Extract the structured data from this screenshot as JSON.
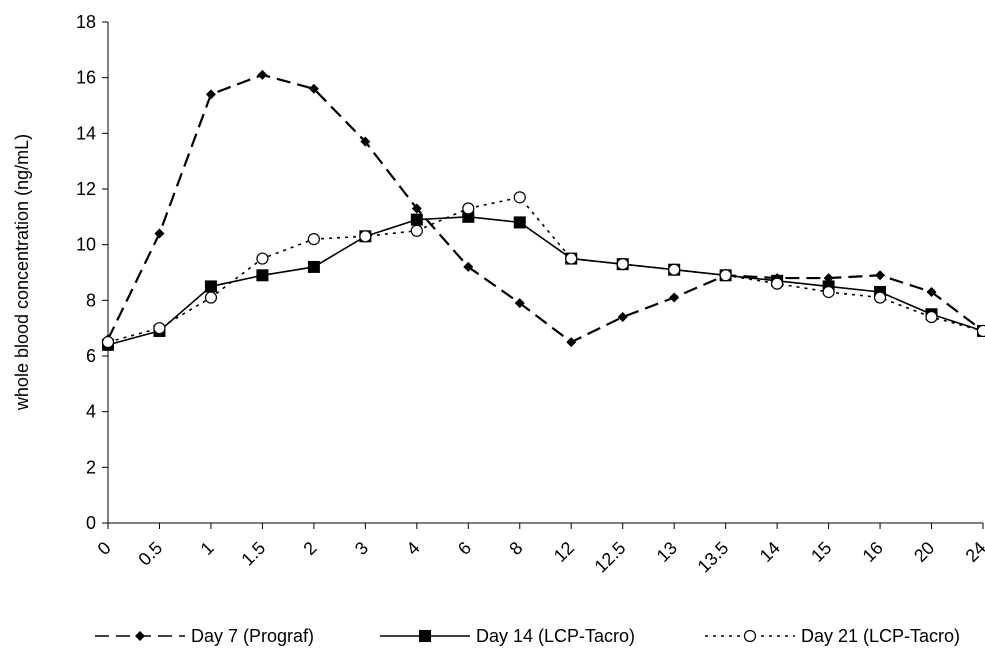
{
  "chart_data": {
    "type": "line",
    "y_label": "whole blood concentration (ng/mL)",
    "categories": [
      "0",
      "0.5",
      "1",
      "1.5",
      "2",
      "3",
      "4",
      "6",
      "8",
      "12",
      "12.5",
      "13",
      "13.5",
      "14",
      "15",
      "16",
      "20",
      "24"
    ],
    "series": [
      {
        "name": "Day 7 (Prograf)",
        "color": "#000000",
        "style": "dashed",
        "marker": "diamond",
        "values": [
          6.6,
          10.4,
          15.4,
          16.1,
          15.6,
          13.7,
          11.3,
          9.2,
          7.9,
          6.5,
          7.4,
          8.1,
          8.9,
          8.8,
          8.8,
          8.9,
          8.3,
          6.9
        ]
      },
      {
        "name": "Day 14 (LCP-Tacro)",
        "color": "#000000",
        "style": "solid",
        "marker": "square",
        "values": [
          6.4,
          6.9,
          8.5,
          8.9,
          9.2,
          10.3,
          10.9,
          11.0,
          10.8,
          9.5,
          9.3,
          9.1,
          8.9,
          8.7,
          8.5,
          8.3,
          7.5,
          6.9
        ]
      },
      {
        "name": "Day 21 (LCP-Tacro)",
        "color": "#000000",
        "style": "dotted",
        "marker": "circle",
        "values": [
          6.5,
          7.0,
          8.1,
          9.5,
          10.2,
          10.3,
          10.5,
          11.3,
          11.7,
          9.5,
          9.3,
          9.1,
          8.9,
          8.6,
          8.3,
          8.1,
          7.4,
          6.9
        ]
      }
    ],
    "ylim": [
      0,
      18
    ],
    "yticks": [
      0,
      2,
      4,
      6,
      8,
      10,
      12,
      14,
      16,
      18
    ],
    "grid": false,
    "legend": "bottom"
  }
}
